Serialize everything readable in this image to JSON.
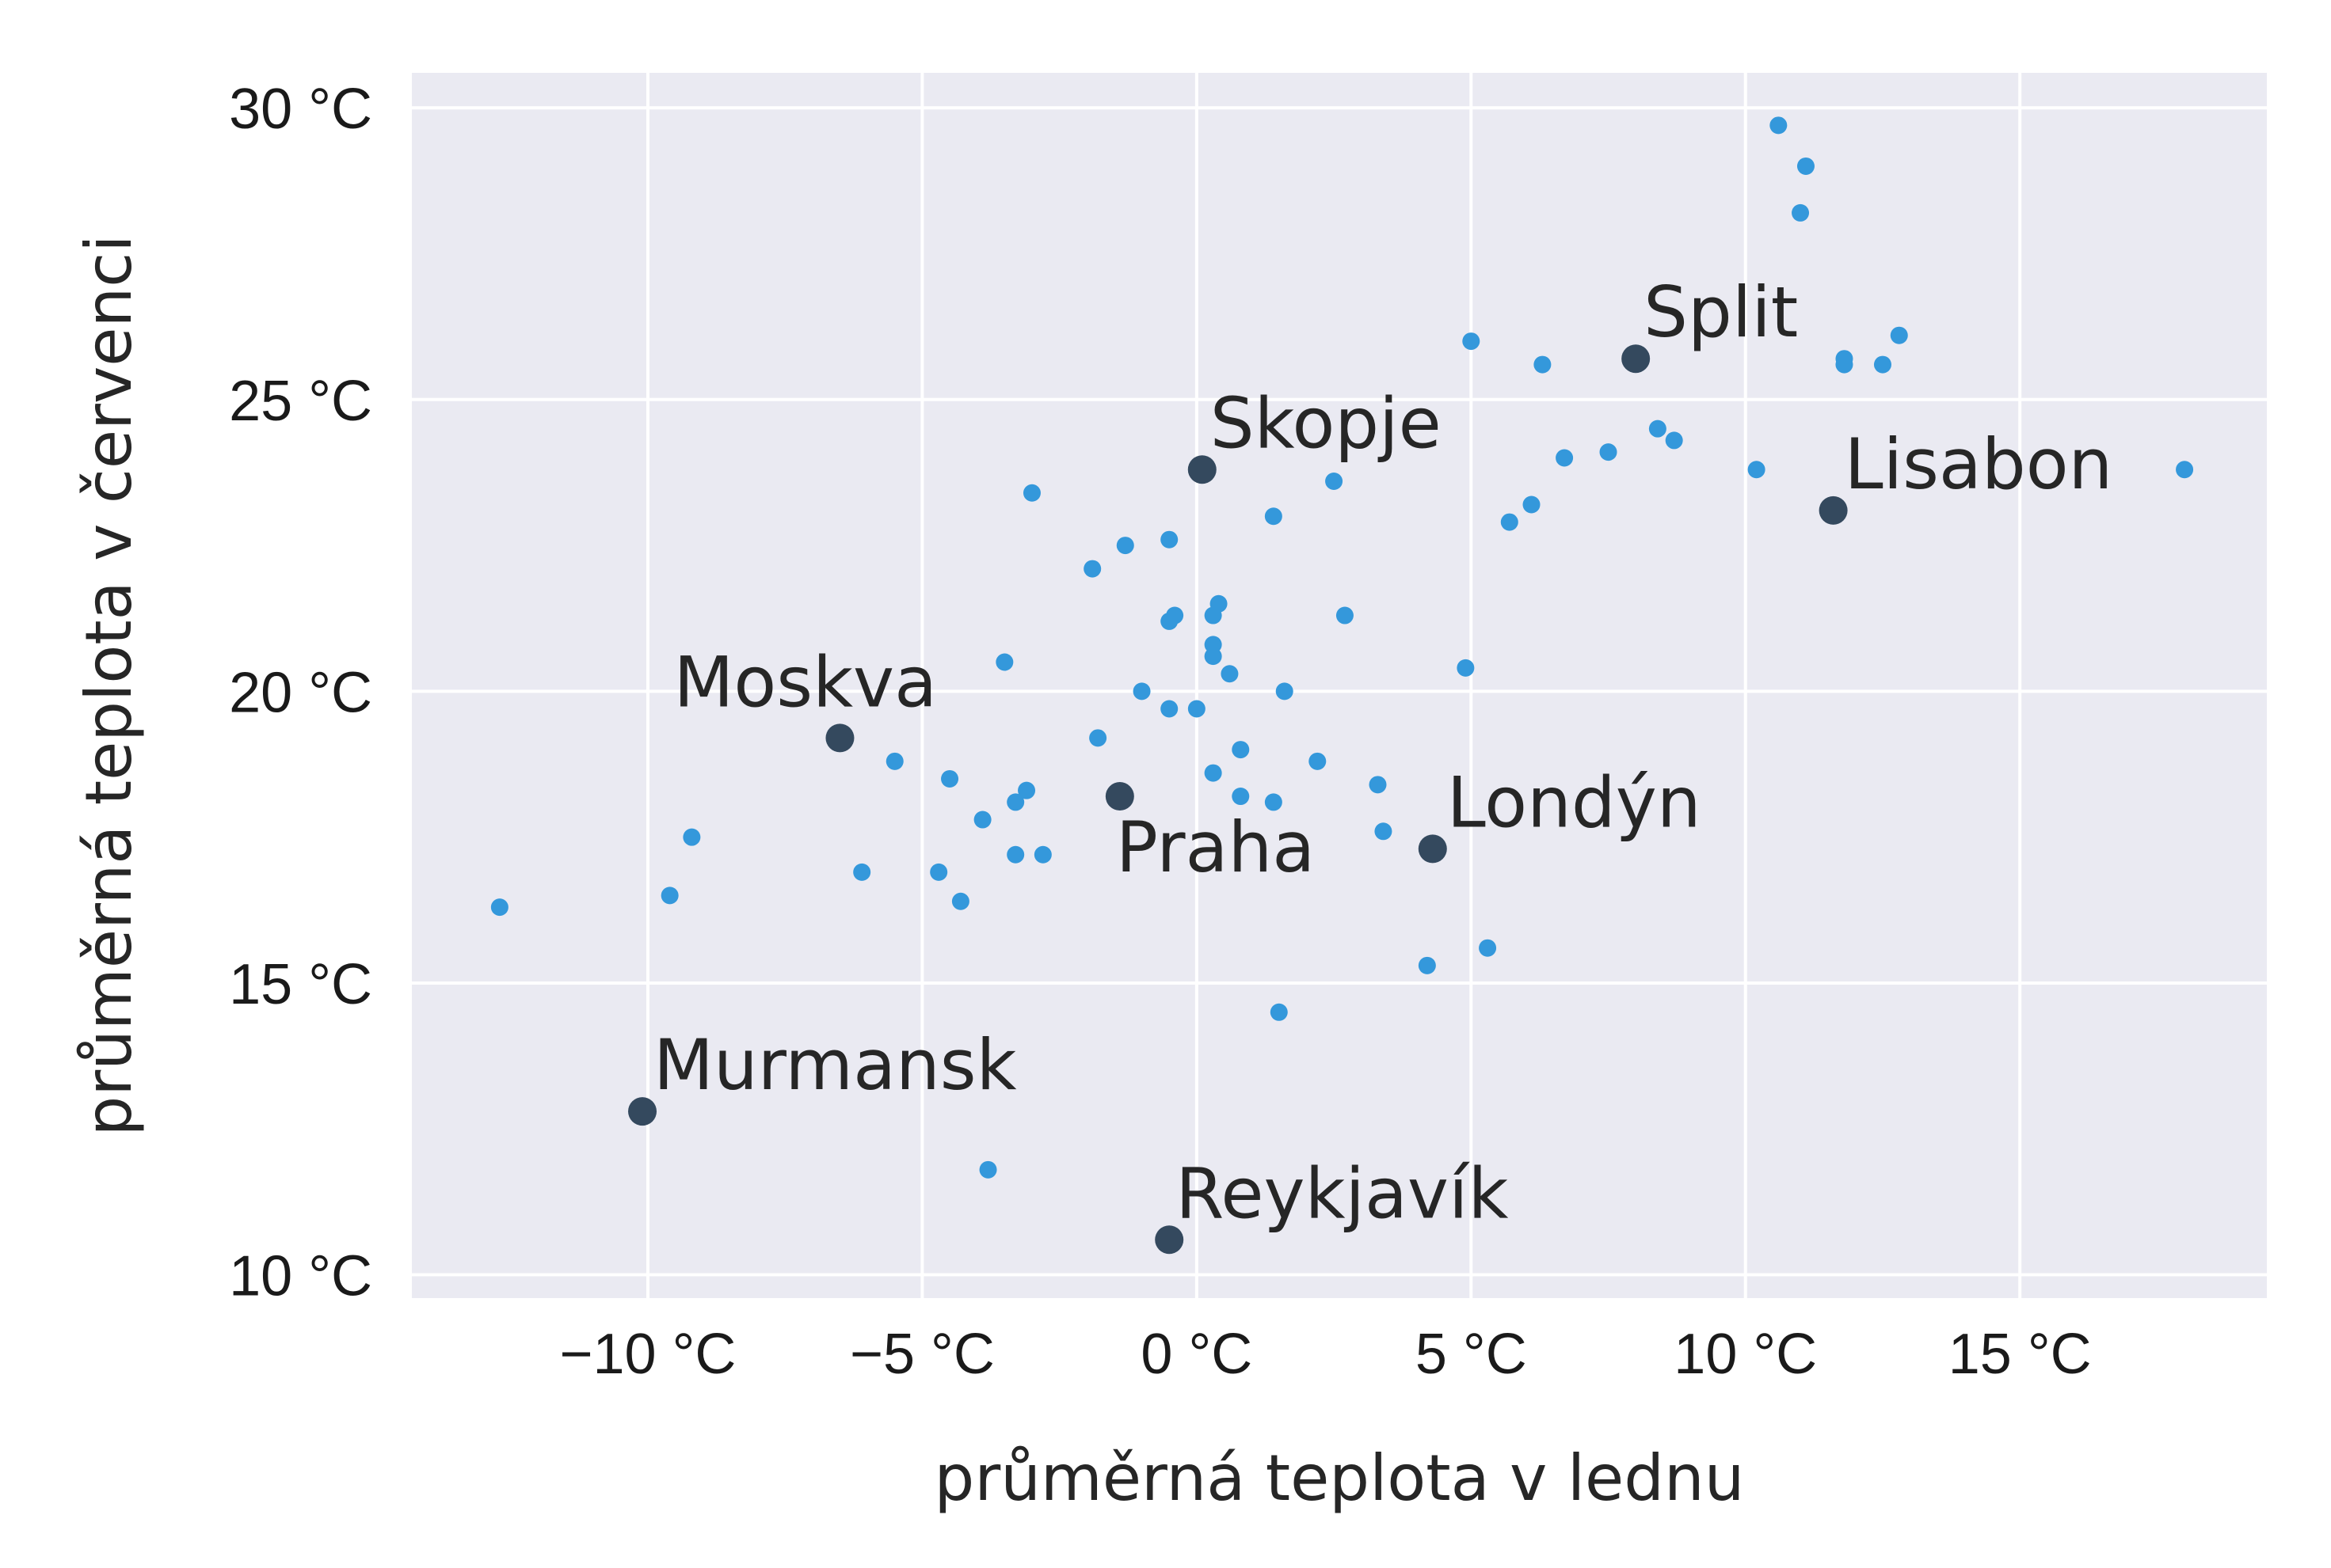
{
  "chart_data": {
    "type": "scatter",
    "xlabel": "průměrná teplota v lednu",
    "ylabel": "průměrná teplota v červenci",
    "xlim": [
      -14.3,
      19.5
    ],
    "ylim": [
      9.6,
      30.6
    ],
    "x_ticks": [
      -10,
      -5,
      0,
      5,
      10,
      15
    ],
    "y_ticks": [
      10,
      15,
      20,
      25,
      30
    ],
    "x_tick_labels": [
      "−10 °C",
      "−5 °C",
      "0 °C",
      "5 °C",
      "10 °C",
      "15 °C"
    ],
    "y_tick_labels": [
      "10 °C",
      "15 °C",
      "20 °C",
      "25 °C",
      "30 °C"
    ],
    "grid": true,
    "colors": {
      "background": "#eaeaf2",
      "grid": "#ffffff",
      "points": "#3498db",
      "highlight": "#34495e"
    },
    "series": [
      {
        "points": [
          [
            -12.7,
            16.3
          ],
          [
            -9.6,
            16.5
          ],
          [
            -9.2,
            17.5
          ],
          [
            -6.1,
            16.9
          ],
          [
            -5.5,
            18.8
          ],
          [
            -4.7,
            16.9
          ],
          [
            -4.5,
            18.5
          ],
          [
            -4.3,
            16.4
          ],
          [
            -3.9,
            17.8
          ],
          [
            -3.8,
            11.8
          ],
          [
            -3.5,
            20.5
          ],
          [
            -3.3,
            18.1
          ],
          [
            -3.3,
            17.2
          ],
          [
            -3.1,
            18.3
          ],
          [
            -3.0,
            23.4
          ],
          [
            -2.8,
            17.2
          ],
          [
            -1.9,
            22.1
          ],
          [
            -1.8,
            19.2
          ],
          [
            -1.3,
            22.5
          ],
          [
            -1.0,
            20.0
          ],
          [
            -0.5,
            22.6
          ],
          [
            -0.5,
            19.7
          ],
          [
            -0.5,
            21.2
          ],
          [
            -0.4,
            21.3
          ],
          [
            0.0,
            19.7
          ],
          [
            0.3,
            21.3
          ],
          [
            0.3,
            20.8
          ],
          [
            0.3,
            20.6
          ],
          [
            0.3,
            18.6
          ],
          [
            0.4,
            21.5
          ],
          [
            0.6,
            20.3
          ],
          [
            0.8,
            19.0
          ],
          [
            0.8,
            18.2
          ],
          [
            1.4,
            23.0
          ],
          [
            1.4,
            18.1
          ],
          [
            1.5,
            14.5
          ],
          [
            1.6,
            20.0
          ],
          [
            2.2,
            18.8
          ],
          [
            2.5,
            23.6
          ],
          [
            2.7,
            21.3
          ],
          [
            3.3,
            18.4
          ],
          [
            3.4,
            17.6
          ],
          [
            4.2,
            15.3
          ],
          [
            4.9,
            20.4
          ],
          [
            5.0,
            26.0
          ],
          [
            5.3,
            15.6
          ],
          [
            5.7,
            22.9
          ],
          [
            6.1,
            23.2
          ],
          [
            6.3,
            25.6
          ],
          [
            6.7,
            24.0
          ],
          [
            7.5,
            24.1
          ],
          [
            8.4,
            24.5
          ],
          [
            8.7,
            24.3
          ],
          [
            10.2,
            23.8
          ],
          [
            10.6,
            29.7
          ],
          [
            11.0,
            28.2
          ],
          [
            11.1,
            29.0
          ],
          [
            11.8,
            25.7
          ],
          [
            11.8,
            25.6
          ],
          [
            12.5,
            25.6
          ],
          [
            12.8,
            26.1
          ],
          [
            18.0,
            23.8
          ]
        ]
      },
      {
        "points": [
          {
            "x": -10.1,
            "y": 12.8,
            "label": "Murmansk"
          },
          {
            "x": -6.5,
            "y": 19.2,
            "label": "Moskva"
          },
          {
            "x": -1.4,
            "y": 18.2,
            "label": "Praha"
          },
          {
            "x": 0.1,
            "y": 23.8,
            "label": "Skopje"
          },
          {
            "x": -0.5,
            "y": 10.6,
            "label": "Reykjavík"
          },
          {
            "x": 4.3,
            "y": 17.3,
            "label": "Londýn"
          },
          {
            "x": 8.0,
            "y": 25.7,
            "label": "Split"
          },
          {
            "x": 11.6,
            "y": 23.1,
            "label": "Lisabon"
          }
        ]
      }
    ]
  }
}
